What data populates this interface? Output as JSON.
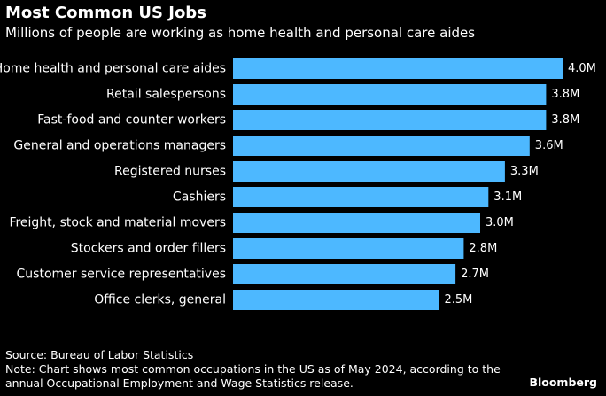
{
  "title": "Most Common US Jobs",
  "subtitle": "Millions of people are working as home health and personal care aides",
  "chart_data": {
    "type": "bar",
    "orientation": "horizontal",
    "title": "Most Common US Jobs",
    "subtitle": "Millions of people are working as home health and personal care aides",
    "categories": [
      "Home health and personal care aides",
      "Retail salespersons",
      "Fast-food and counter workers",
      "General and operations managers",
      "Registered nurses",
      "Cashiers",
      "Freight, stock and material movers",
      "Stockers and order fillers",
      "Customer service representatives",
      "Office clerks, general"
    ],
    "values": [
      4.0,
      3.8,
      3.8,
      3.6,
      3.3,
      3.1,
      3.0,
      2.8,
      2.7,
      2.5
    ],
    "value_labels": [
      "4.0M",
      "3.8M",
      "3.8M",
      "3.6M",
      "3.3M",
      "3.1M",
      "3.0M",
      "2.8M",
      "2.7M",
      "2.5M"
    ],
    "unit": "M",
    "xlim": [
      0,
      4.0
    ],
    "grid": false,
    "bar_color": "#4db8ff"
  },
  "footer": {
    "source": "Source: Bureau of Labor Statistics",
    "note": "Note: Chart shows most common occupations in the US as of May 2024, according to the annual Occupational Employment and Wage Statistics release.",
    "brand": "Bloomberg"
  },
  "colors": {
    "background": "#000000",
    "text": "#ffffff",
    "bar": "#4db8ff"
  }
}
